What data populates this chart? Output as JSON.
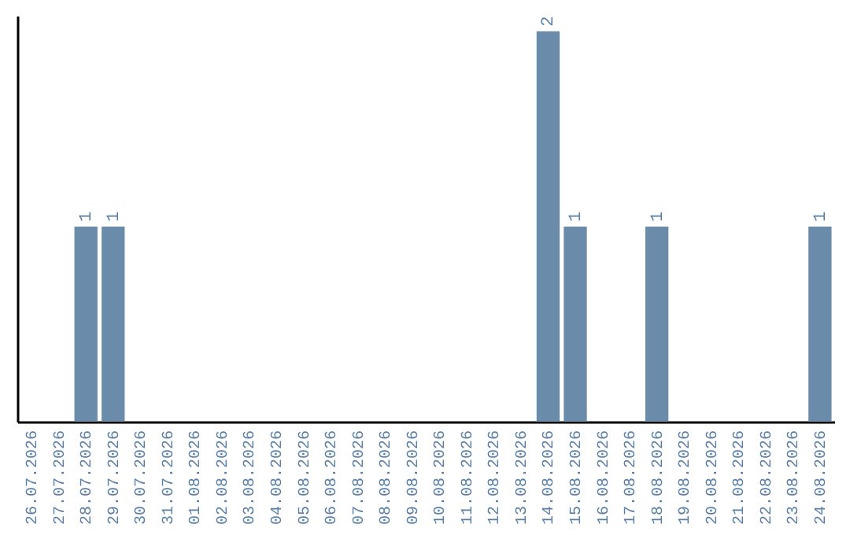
{
  "chart_data": {
    "type": "bar",
    "categories": [
      "26.07.2026",
      "27.07.2026",
      "28.07.2026",
      "29.07.2026",
      "30.07.2026",
      "31.07.2026",
      "01.08.2026",
      "02.08.2026",
      "03.08.2026",
      "04.08.2026",
      "05.08.2026",
      "06.08.2026",
      "07.08.2026",
      "08.08.2026",
      "09.08.2026",
      "10.08.2026",
      "11.08.2026",
      "12.08.2026",
      "13.08.2026",
      "14.08.2026",
      "15.08.2026",
      "16.08.2026",
      "17.08.2026",
      "18.08.2026",
      "19.08.2026",
      "20.08.2026",
      "21.08.2026",
      "22.08.2026",
      "23.08.2026",
      "24.08.2026"
    ],
    "values": [
      0,
      0,
      1,
      1,
      0,
      0,
      0,
      0,
      0,
      0,
      0,
      0,
      0,
      0,
      0,
      0,
      0,
      0,
      0,
      2,
      1,
      0,
      0,
      1,
      0,
      0,
      0,
      0,
      0,
      1
    ],
    "value_labels": [
      null,
      null,
      "1",
      "1",
      null,
      null,
      null,
      null,
      null,
      null,
      null,
      null,
      null,
      null,
      null,
      null,
      null,
      null,
      null,
      "2",
      "1",
      null,
      null,
      "1",
      null,
      null,
      null,
      null,
      null,
      "1"
    ],
    "color": "#6a8caa",
    "ylim": [
      0,
      2.08
    ],
    "tick_labels": "x",
    "grid": false
  }
}
